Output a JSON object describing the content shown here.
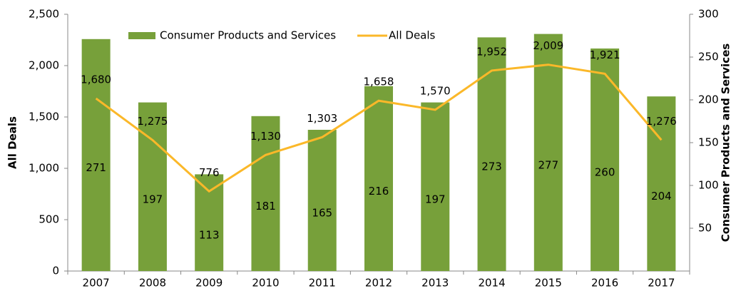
{
  "chart_data": {
    "type": "bar-line",
    "categories": [
      "2007",
      "2008",
      "2009",
      "2010",
      "2011",
      "2012",
      "2013",
      "2014",
      "2015",
      "2016",
      "2017"
    ],
    "series": [
      {
        "name": "Consumer Products and Services",
        "type": "bar",
        "axis": "y2",
        "color": "#77a03a",
        "values": [
          271,
          197,
          113,
          181,
          165,
          216,
          197,
          273,
          277,
          260,
          204
        ]
      },
      {
        "name": "All Deals",
        "type": "line",
        "axis": "y",
        "color": "#fbb829",
        "values": [
          1680,
          1275,
          776,
          1130,
          1303,
          1658,
          1570,
          1952,
          2009,
          1921,
          1276
        ],
        "value_labels": [
          "1,680",
          "1,275",
          "776",
          "1,130",
          "1,303",
          "1,658",
          "1,570",
          "1,952",
          "2,009",
          "1,921",
          "1,276"
        ]
      }
    ],
    "ylabel": "All Deals",
    "y2label": "Consumer Products and Services",
    "ylim": [
      0,
      2500
    ],
    "yticks": [
      0,
      500,
      {
        "value": 1000,
        "label": "1,000"
      },
      {
        "value": 1500,
        "label": "1,500"
      },
      {
        "value": 2000,
        "label": "2,000"
      },
      {
        "value": 2500,
        "label": "2,500"
      }
    ],
    "y2lim": [
      0,
      300
    ],
    "y2ticks": [
      50,
      100,
      150,
      200,
      250,
      300
    ],
    "legend": "top"
  }
}
